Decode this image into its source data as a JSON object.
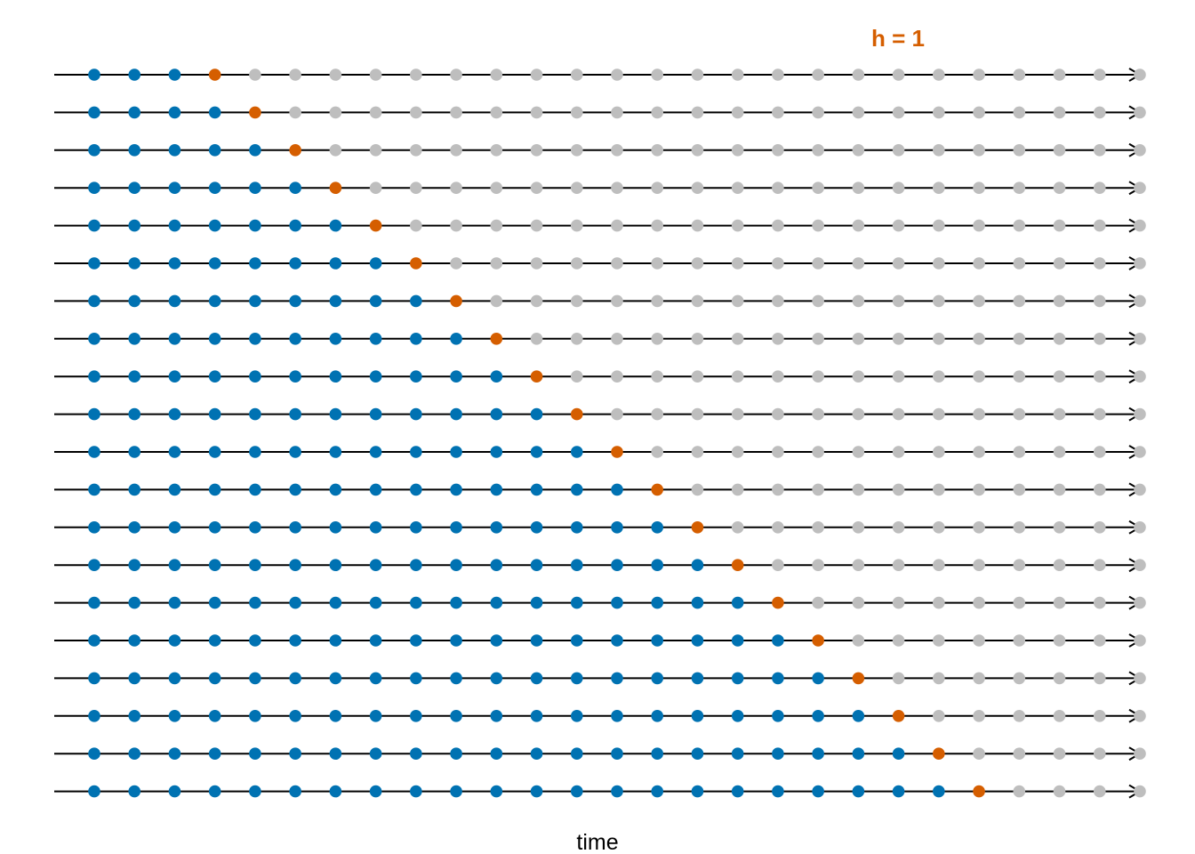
{
  "diagram": {
    "type": "time-series-cross-validation",
    "horizon_label": "h = 1",
    "x_axis_label": "time",
    "rows": 20,
    "time_points": 27,
    "initial_training_points": 3,
    "horizon": 1,
    "colors": {
      "training": "#0072B2",
      "test": "#D55E00",
      "unused": "#BEBEBE",
      "line": "#000000"
    }
  }
}
